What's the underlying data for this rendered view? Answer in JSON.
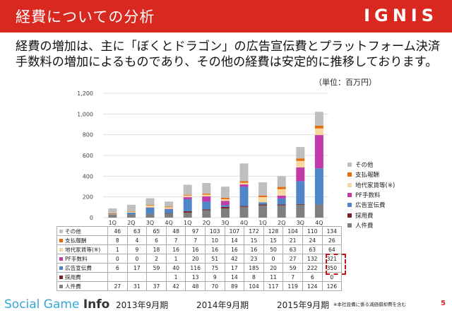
{
  "header": {
    "title": "経費についての分析",
    "logo": "IGNIS"
  },
  "lead": "経費の増加は、主に「ぼくとドラゴン」の広告宣伝費とプラットフォーム決済手数料の増加によるものであり、その他の経費は安定的に推移しております。",
  "unit": "（単位：百万円）",
  "chart_data": {
    "type": "bar",
    "stacked": true,
    "categories": [
      "1Q",
      "2Q",
      "3Q",
      "4Q",
      "1Q",
      "2Q",
      "3Q",
      "4Q",
      "1Q",
      "2Q",
      "3Q",
      "4Q"
    ],
    "ylim": [
      0,
      1200
    ],
    "yticks": [
      "0",
      "200",
      "400",
      "600",
      "800",
      "1,000",
      "1,200"
    ],
    "series": [
      {
        "name": "人件費",
        "color": "#7f7f7f",
        "values": [
          27,
          31,
          37,
          42,
          48,
          70,
          89,
          104,
          117,
          119,
          124,
          126
        ]
      },
      {
        "name": "採用費",
        "color": "#7a2020",
        "values": [
          0,
          0,
          0,
          1,
          13,
          9,
          14,
          8,
          11,
          7,
          6,
          0
        ]
      },
      {
        "name": "広告宣伝費",
        "color": "#4f86c6",
        "values": [
          6,
          17,
          59,
          40,
          116,
          75,
          17,
          185,
          20,
          59,
          222,
          350
        ]
      },
      {
        "name": "PF手数料",
        "color": "#c03aa8",
        "values": [
          0,
          0,
          2,
          1,
          20,
          51,
          42,
          23,
          0,
          27,
          132,
          321
        ]
      },
      {
        "name": "地代家賃等(※)",
        "color": "#f7d7a0",
        "values": [
          1,
          9,
          18,
          16,
          16,
          16,
          16,
          16,
          50,
          63,
          63,
          64
        ]
      },
      {
        "name": "支払報酬",
        "color": "#e46c0a",
        "values": [
          8,
          4,
          6,
          7,
          7,
          10,
          14,
          15,
          15,
          21,
          24,
          26
        ]
      },
      {
        "name": "その他",
        "color": "#bfbfbf",
        "values": [
          46,
          63,
          65,
          48,
          97,
          103,
          107,
          172,
          128,
          104,
          110,
          134
        ]
      }
    ]
  },
  "table": {
    "rows": [
      {
        "label": "その他",
        "color": "#bfbfbf",
        "values": [
          "46",
          "63",
          "65",
          "48",
          "97",
          "103",
          "107",
          "172",
          "128",
          "104",
          "110",
          "134"
        ]
      },
      {
        "label": "支払報酬",
        "color": "#e46c0a",
        "values": [
          "8",
          "4",
          "6",
          "7",
          "7",
          "10",
          "14",
          "15",
          "15",
          "21",
          "24",
          "26"
        ]
      },
      {
        "label": "地代家賃等(※)",
        "color": "#f7d7a0",
        "values": [
          "1",
          "9",
          "18",
          "16",
          "16",
          "16",
          "16",
          "16",
          "50",
          "63",
          "63",
          "64"
        ]
      },
      {
        "label": "PF手数料",
        "color": "#c03aa8",
        "values": [
          "0",
          "0",
          "2",
          "1",
          "20",
          "51",
          "42",
          "23",
          "0",
          "27",
          "132",
          "321"
        ]
      },
      {
        "label": "広告宣伝費",
        "color": "#4f86c6",
        "values": [
          "6",
          "17",
          "59",
          "40",
          "116",
          "75",
          "17",
          "185",
          "20",
          "59",
          "222",
          "350"
        ]
      },
      {
        "label": "採用費",
        "color": "#7a2020",
        "values": [
          "",
          "",
          "",
          "1",
          "13",
          "9",
          "14",
          "8",
          "11",
          "7",
          "6",
          "0"
        ]
      },
      {
        "label": "人件費",
        "color": "#7f7f7f",
        "values": [
          "27",
          "31",
          "37",
          "42",
          "48",
          "70",
          "89",
          "104",
          "117",
          "119",
          "124",
          "126"
        ]
      }
    ]
  },
  "footer": {
    "brand_a": "Social Game ",
    "brand_b": "Info",
    "periods": [
      "2013年9月期",
      "2014年9月期",
      "2015年9月期"
    ],
    "note": "※本社設備に係る減価償却費を含む",
    "page": "5"
  }
}
